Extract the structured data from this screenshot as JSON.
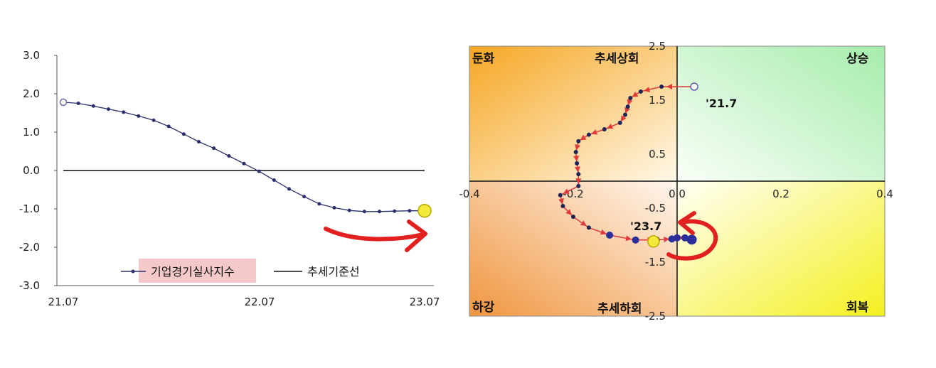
{
  "chart_data": [
    {
      "type": "line",
      "y_ticks": [
        "3.0",
        "2.0",
        "1.0",
        "0.0",
        "-1.0",
        "-2.0",
        "-3.0"
      ],
      "x_ticks": [
        "21.07",
        "22.07",
        "23.07"
      ],
      "ylim": [
        -3,
        3
      ],
      "series": [
        {
          "name": "기업경기실사지수",
          "color": "#2b2f6e",
          "x": [
            0,
            1,
            2,
            3,
            4,
            5,
            6,
            7,
            8,
            9,
            10,
            11,
            12,
            13,
            14,
            15,
            16,
            17,
            18,
            19,
            20,
            21,
            22,
            23,
            24
          ],
          "values": [
            1.78,
            1.75,
            1.68,
            1.6,
            1.52,
            1.42,
            1.31,
            1.15,
            0.95,
            0.75,
            0.58,
            0.38,
            0.18,
            -0.02,
            -0.25,
            -0.48,
            -0.68,
            -0.87,
            -0.97,
            -1.04,
            -1.07,
            -1.07,
            -1.06,
            -1.05,
            -1.05
          ]
        },
        {
          "name": "추세기준선",
          "color": "#111111",
          "constant": 0.0
        }
      ],
      "grid": false,
      "legend": "bottom"
    },
    {
      "type": "scatter",
      "xlim": [
        -0.4,
        0.4
      ],
      "ylim": [
        -2.5,
        2.5
      ],
      "x_ticks": [
        "-0.4",
        "-0.2",
        "0.0",
        "0.2",
        "0.4"
      ],
      "y_ticks": [
        "2.5",
        "1.5",
        "0.5",
        "-0.5",
        "-1.5",
        "-2.5"
      ],
      "quadrants": [
        "둔화",
        "추세상회",
        "상승",
        "하강",
        "추세하회",
        "회복"
      ],
      "annotations": [
        "'21.7",
        "'23.7"
      ],
      "path": [
        {
          "x": 0.033,
          "y": 1.75
        },
        {
          "x": -0.03,
          "y": 1.75
        },
        {
          "x": -0.07,
          "y": 1.66
        },
        {
          "x": -0.09,
          "y": 1.54
        },
        {
          "x": -0.095,
          "y": 1.38
        },
        {
          "x": -0.1,
          "y": 1.23
        },
        {
          "x": -0.11,
          "y": 1.08
        },
        {
          "x": -0.14,
          "y": 0.96
        },
        {
          "x": -0.17,
          "y": 0.86
        },
        {
          "x": -0.19,
          "y": 0.74
        },
        {
          "x": -0.195,
          "y": 0.54
        },
        {
          "x": -0.193,
          "y": 0.33
        },
        {
          "x": -0.19,
          "y": 0.13
        },
        {
          "x": -0.19,
          "y": -0.09
        },
        {
          "x": -0.225,
          "y": -0.26
        },
        {
          "x": -0.22,
          "y": -0.46
        },
        {
          "x": -0.2,
          "y": -0.66
        },
        {
          "x": -0.17,
          "y": -0.86
        },
        {
          "x": -0.13,
          "y": -1.0
        },
        {
          "x": -0.08,
          "y": -1.09
        },
        {
          "x": -0.04,
          "y": -1.09
        },
        {
          "x": -0.01,
          "y": -1.07
        },
        {
          "x": 0.0,
          "y": -1.05
        },
        {
          "x": 0.015,
          "y": -1.05
        },
        {
          "x": 0.02,
          "y": -1.07
        }
      ]
    }
  ]
}
